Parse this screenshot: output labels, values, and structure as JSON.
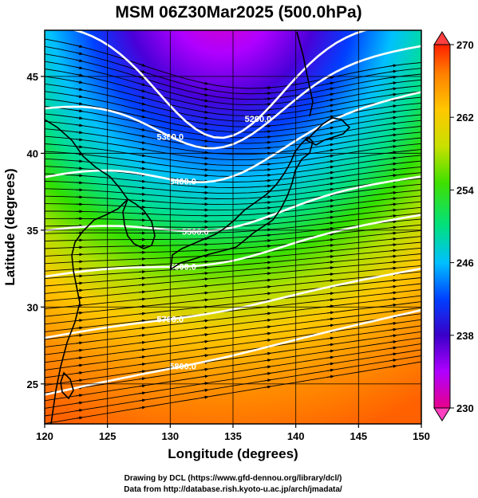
{
  "title": "MSM 06Z30Mar2025 (500.0hPa)",
  "map": {
    "xlabel": "Longitude (degrees)",
    "ylabel": "Latitude  (degrees)",
    "lon_range": [
      120,
      150
    ],
    "lat_range": [
      22.4,
      48
    ],
    "lon_ticks": [
      "120",
      "125",
      "130",
      "135",
      "140",
      "145",
      "150"
    ],
    "lat_ticks": [
      "25",
      "30",
      "35",
      "40",
      "45"
    ],
    "lon_tick_values": [
      120,
      125,
      130,
      135,
      140,
      145,
      150
    ],
    "lat_tick_values": [
      25,
      30,
      35,
      40,
      45
    ],
    "grid": true,
    "shaded_field": "temperature",
    "overlay": [
      "streamlines",
      "geopotential height contours",
      "coastlines"
    ]
  },
  "colorbar": {
    "min": 230,
    "max": 270,
    "tick_labels": [
      "270",
      "262",
      "254",
      "246",
      "238",
      "230"
    ],
    "tick_values": [
      270,
      262,
      254,
      246,
      238,
      230
    ],
    "colors": [
      "#e8008a",
      "#b000ff",
      "#3a00c8",
      "#0040ff",
      "#00c0ff",
      "#00e080",
      "#40e000",
      "#c8e000",
      "#ffc800",
      "#ff8000",
      "#ff2000"
    ]
  },
  "contours": [
    {
      "label": "5200.0",
      "level": 5200
    },
    {
      "label": "5300.0",
      "level": 5300
    },
    {
      "label": "5400.0",
      "level": 5400
    },
    {
      "label": "5500.0",
      "level": 5500
    },
    {
      "label": "5600.0",
      "level": 5600
    },
    {
      "label": "5700.0",
      "level": 5700
    },
    {
      "label": "5800.0",
      "level": 5800
    }
  ],
  "credits": {
    "line1": "Drawing by DCL (https://www.gfd-dennou.org/library/dcl/)",
    "line2": "Data from http://database.rish.kyoto-u.ac.jp/arch/jmadata/"
  }
}
